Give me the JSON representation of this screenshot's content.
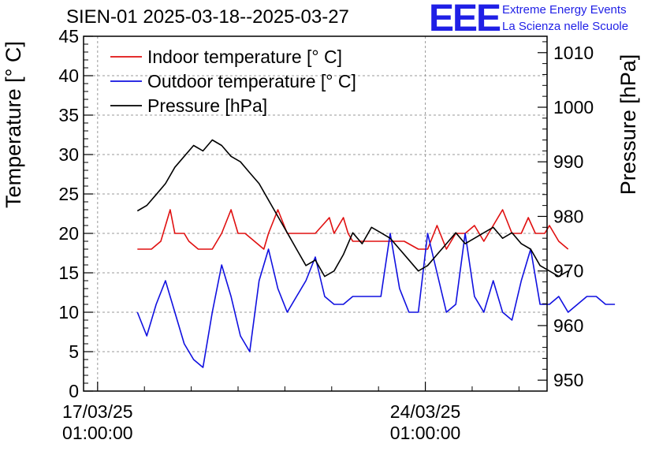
{
  "header": {
    "title": "SIEN-01 2025-03-18--2025-03-27",
    "logo_text": "EEE",
    "org_line1": "Extreme Energy Events",
    "org_line2": "La Scienza nelle Scuole"
  },
  "chart_data": {
    "type": "line",
    "title": "SIEN-01 2025-03-18--2025-03-27",
    "ylabel": "Temperature [° C]",
    "y2label": "Pressure [hPa]",
    "ylim": [
      0,
      45
    ],
    "y2lim": [
      948,
      1013
    ],
    "xlim_days": [
      -0.3,
      9.6
    ],
    "yticks": [
      0,
      5,
      10,
      15,
      20,
      25,
      30,
      35,
      40,
      45
    ],
    "y2ticks": [
      950,
      960,
      970,
      980,
      990,
      1000,
      1010
    ],
    "xticks": [
      {
        "day": 0,
        "date": "17/03/25",
        "time": "01:00:00"
      },
      {
        "day": 7,
        "date": "24/03/25",
        "time": "01:00:00"
      }
    ],
    "grid": true,
    "legend_position": "top-left",
    "colors": {
      "indoor": "#e01010",
      "outdoor": "#1010e0",
      "pressure": "#000000",
      "grid": "#999999"
    },
    "series": [
      {
        "name": "Indoor temperature [° C]",
        "axis": "left",
        "color": "#e01010",
        "x": [
          0.85,
          1.15,
          1.35,
          1.55,
          1.65,
          1.85,
          1.95,
          2.15,
          2.45,
          2.65,
          2.85,
          3.0,
          3.15,
          3.35,
          3.55,
          3.65,
          3.85,
          4.05,
          4.25,
          4.45,
          4.65,
          4.95,
          5.05,
          5.15,
          5.25,
          5.35,
          5.45,
          5.75,
          6.05,
          6.25,
          6.55,
          6.85,
          7.05,
          7.25,
          7.45,
          7.65,
          7.85,
          8.05,
          8.25,
          8.45,
          8.65,
          8.85,
          9.05,
          9.2,
          9.35,
          9.45,
          9.55,
          9.65,
          9.85,
          10.05
        ],
        "values": [
          18,
          18,
          19,
          23,
          20,
          20,
          19,
          18,
          18,
          20,
          23,
          20,
          20,
          19,
          18,
          20,
          23,
          20,
          20,
          20,
          20,
          22,
          20,
          21,
          22,
          20,
          19,
          19,
          19,
          19,
          19,
          18,
          18,
          21,
          18,
          20,
          20,
          21,
          19,
          21,
          23,
          20,
          20,
          22,
          20,
          20,
          20,
          21,
          19,
          18
        ]
      },
      {
        "name": "Outdoor temperature [° C]",
        "axis": "left",
        "color": "#1010e0",
        "x": [
          0.85,
          1.05,
          1.25,
          1.45,
          1.65,
          1.85,
          2.05,
          2.25,
          2.45,
          2.65,
          2.85,
          3.05,
          3.25,
          3.45,
          3.65,
          3.85,
          4.05,
          4.25,
          4.45,
          4.65,
          4.85,
          5.05,
          5.25,
          5.45,
          5.65,
          5.85,
          6.05,
          6.25,
          6.45,
          6.65,
          6.85,
          7.05,
          7.25,
          7.45,
          7.65,
          7.85,
          8.05,
          8.25,
          8.45,
          8.65,
          8.85,
          9.05,
          9.25,
          9.45,
          9.65,
          9.85,
          10.05,
          10.25,
          10.45,
          10.65,
          10.85,
          11.05
        ],
        "values": [
          10,
          7,
          11,
          14,
          10,
          6,
          4,
          3,
          10,
          16,
          12,
          7,
          5,
          14,
          18,
          13,
          10,
          12,
          14,
          17,
          12,
          11,
          11,
          12,
          12,
          12,
          12,
          20,
          13,
          10,
          10,
          20,
          15,
          10,
          11,
          20,
          12,
          10,
          14,
          10,
          9,
          14,
          18,
          11,
          11,
          12,
          10,
          11,
          12,
          12,
          11,
          11
        ]
      },
      {
        "name": "Pressure [hPa]",
        "axis": "right",
        "color": "#000000",
        "x": [
          0.85,
          1.05,
          1.25,
          1.45,
          1.65,
          1.85,
          2.05,
          2.25,
          2.45,
          2.65,
          2.85,
          3.05,
          3.25,
          3.45,
          3.65,
          3.85,
          4.05,
          4.25,
          4.45,
          4.65,
          4.85,
          5.05,
          5.25,
          5.45,
          5.65,
          5.85,
          6.05,
          6.25,
          6.45,
          6.65,
          6.85,
          7.05,
          7.25,
          7.45,
          7.65,
          7.85,
          8.05,
          8.25,
          8.45,
          8.65,
          8.85,
          9.05,
          9.25,
          9.45,
          9.65,
          9.85,
          10.05
        ],
        "values": [
          981,
          982,
          984,
          986,
          989,
          991,
          993,
          992,
          994,
          993,
          991,
          990,
          988,
          986,
          983,
          980,
          977,
          974,
          971,
          972,
          969,
          970,
          973,
          977,
          975,
          978,
          977,
          976,
          974,
          972,
          970,
          971,
          973,
          975,
          977,
          975,
          976,
          977,
          978,
          976,
          977,
          975,
          974,
          971,
          970,
          969,
          970
        ]
      }
    ]
  }
}
